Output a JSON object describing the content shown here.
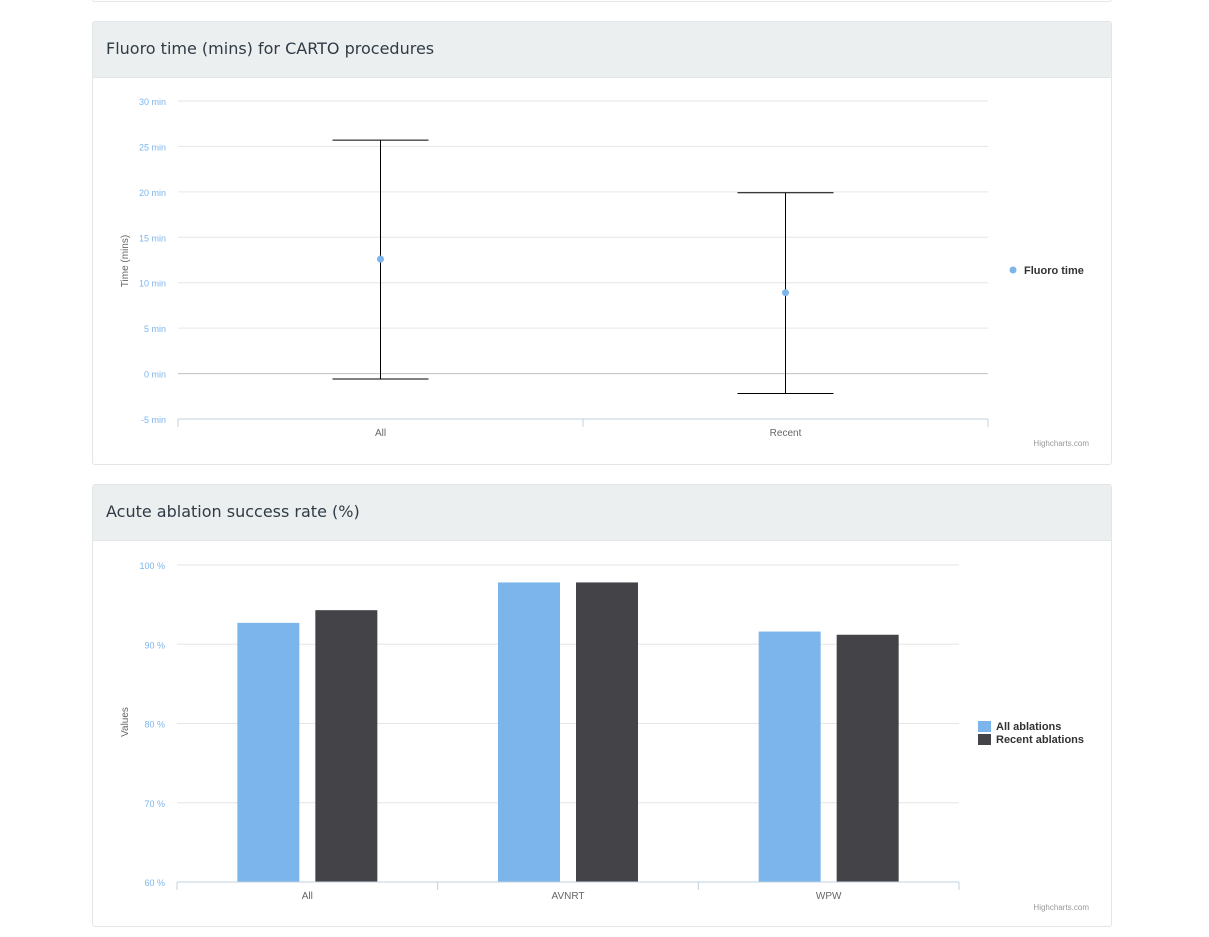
{
  "panels": {
    "fluoro_title": "Fluoro time (mins) for CARTO procedures",
    "ablation_title": "Acute ablation success rate (%)"
  },
  "credits": "Highcharts.com",
  "chart_data": [
    {
      "type": "scatter",
      "title": "Fluoro time (mins) for CARTO procedures",
      "categories": [
        "All",
        "Recent"
      ],
      "ylabel": "Time (mins)",
      "ylim": [
        -5,
        30
      ],
      "ytick_step": 5,
      "ytick_suffix": " min",
      "grid": true,
      "legend_position": "right",
      "series": [
        {
          "name": "Fluoro time",
          "values": [
            12.6,
            8.9
          ],
          "color": "#7cb5ec"
        }
      ],
      "error_bars": [
        {
          "low": -0.6,
          "high": 25.7
        },
        {
          "low": -2.2,
          "high": 19.9
        }
      ]
    },
    {
      "type": "bar",
      "title": "Acute ablation success rate (%)",
      "categories": [
        "All",
        "AVNRT",
        "WPW"
      ],
      "ylabel": "Values",
      "ylim": [
        60,
        100
      ],
      "ytick_step": 10,
      "ytick_suffix": " %",
      "grid": true,
      "legend_position": "right",
      "series": [
        {
          "name": "All ablations",
          "values": [
            92.7,
            97.8,
            91.6
          ],
          "color": "#7cb5ec"
        },
        {
          "name": "Recent ablations",
          "values": [
            94.3,
            97.8,
            91.2
          ],
          "color": "#434348"
        }
      ]
    }
  ]
}
